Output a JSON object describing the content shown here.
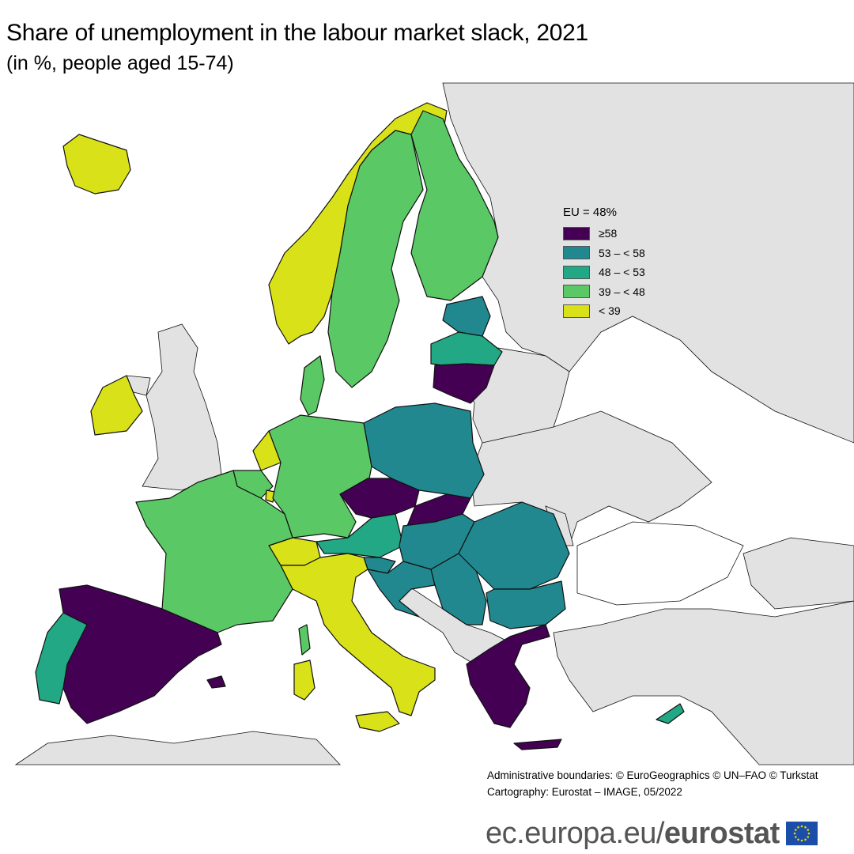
{
  "title": "Share of unemployment in the labour market slack, 2021",
  "subtitle": "(in %, people aged 15-74)",
  "legend": {
    "heading": "EU = 48%",
    "classes": [
      {
        "label": "≥58",
        "color": "#440154"
      },
      {
        "label": "53 – < 58",
        "color": "#21888f"
      },
      {
        "label": "48 – < 53",
        "color": "#22a884"
      },
      {
        "label": "39 – < 48",
        "color": "#5ac864"
      },
      {
        "label": "< 39",
        "color": "#d9e119"
      }
    ]
  },
  "map": {
    "non_data_color": "#e2e2e2",
    "sea_color": "#ffffff",
    "regions": {
      "iceland": "< 39",
      "norway": "< 39",
      "sweden": "39 – < 48",
      "finland": "39 – < 48",
      "estonia": "53 – < 58",
      "latvia": "48 – < 53",
      "lithuania": "≥58",
      "denmark": "39 – < 48",
      "ireland": "< 39",
      "netherlands": "< 39",
      "belgium": "39 – < 48",
      "luxembourg": "< 39",
      "germany": "39 – < 48",
      "poland": "53 – < 58",
      "czechia": "≥58",
      "slovakia": "≥58",
      "austria": "48 – < 53",
      "hungary": "53 – < 58",
      "slovenia": "53 – < 58",
      "croatia": "53 – < 58",
      "romania": "53 – < 58",
      "bulgaria": "53 – < 58",
      "serbia": "53 – < 58",
      "switzerland": "< 39",
      "italy": "< 39",
      "france": "39 – < 48",
      "spain": "≥58",
      "portugal": "48 – < 53",
      "greece": "≥58",
      "cyprus": "48 – < 53"
    }
  },
  "credits": {
    "line1": "Administrative boundaries: © EuroGeographics © UN–FAO © Turkstat",
    "line2": "Cartography: Eurostat – IMAGE, 05/2022"
  },
  "footer": {
    "url": "ec.europa.eu/",
    "brand": "eurostat"
  }
}
